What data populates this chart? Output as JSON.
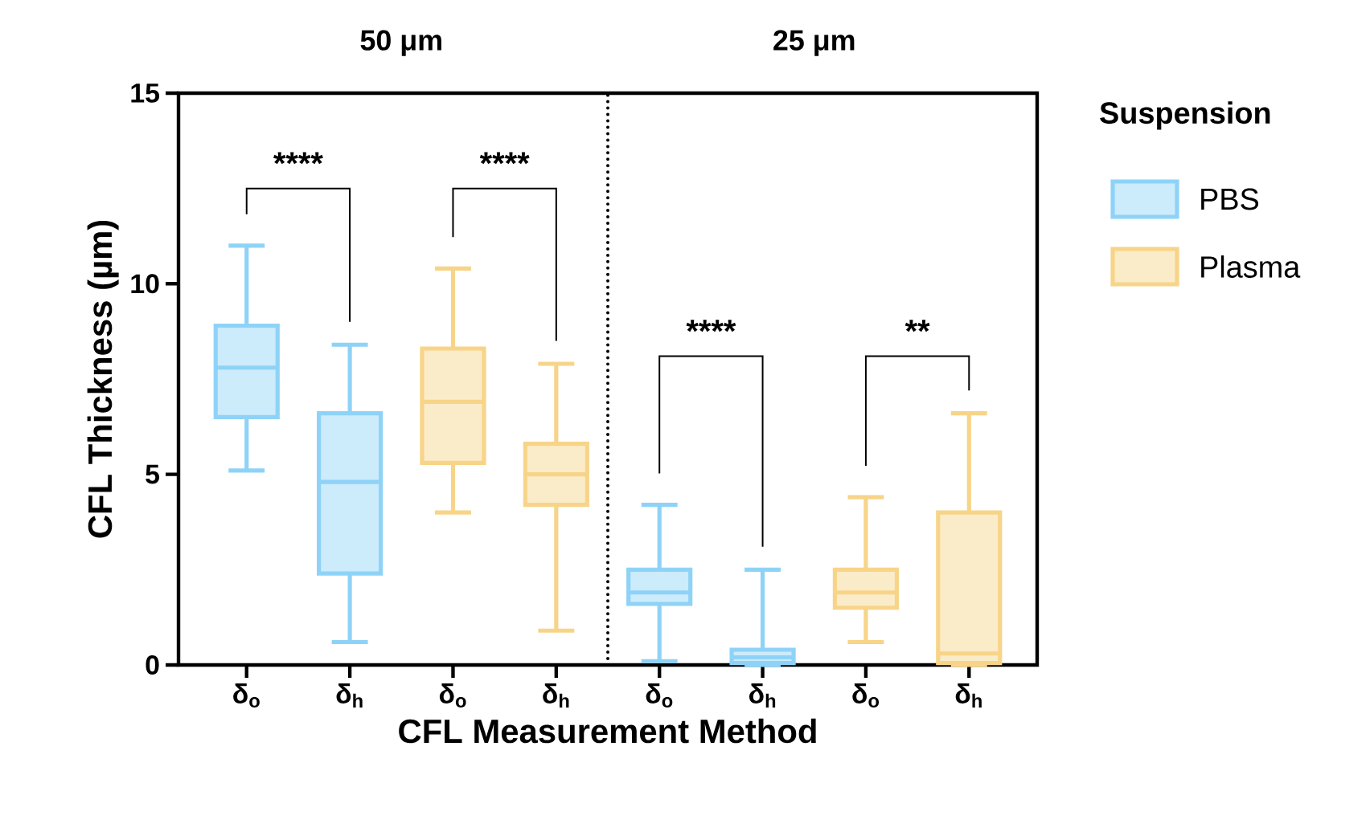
{
  "chart_data": {
    "type": "box",
    "ylabel": "CFL Thickness (µm)",
    "xlabel": "CFL Measurement Method",
    "categories": [
      "δ$_{o}$",
      "δ$_{h}$",
      "δ$_{o}$",
      "δ$_{h}$",
      "δ$_{o}$",
      "δ$_{h}$",
      "δ$_{o}$",
      "δ$_{h}$"
    ],
    "ylim": [
      0,
      15
    ],
    "yticks": [
      0,
      5,
      10,
      15
    ],
    "grid": false,
    "legend": "right",
    "legend_title": "Suspension",
    "annotations": [
      "50 μm",
      "25 μm",
      "****",
      "****",
      "****",
      "**"
    ],
    "series": [
      {
        "name": "PBS",
        "color": "#8ed3f7",
        "boxes": [
          {
            "low": 5.1,
            "q1": 6.5,
            "median": 7.8,
            "q3": 8.9,
            "high": 11.0
          },
          {
            "low": 0.6,
            "q1": 2.4,
            "median": 4.8,
            "q3": 6.6,
            "high": 8.4
          },
          null,
          null,
          {
            "low": 0.1,
            "q1": 1.6,
            "median": 1.9,
            "q3": 2.5,
            "high": 4.2
          },
          {
            "low": 0,
            "q1": 0.05,
            "median": 0.2,
            "q3": 0.4,
            "high": 2.5
          },
          null,
          null
        ]
      },
      {
        "name": "Plasma",
        "color": "#f7d488",
        "boxes": [
          null,
          null,
          {
            "low": 4.0,
            "q1": 5.3,
            "median": 6.9,
            "q3": 8.3,
            "high": 10.4
          },
          {
            "low": 0.9,
            "q1": 4.2,
            "median": 5.0,
            "q3": 5.8,
            "high": 7.9
          },
          null,
          null,
          {
            "low": 0.6,
            "q1": 1.5,
            "median": 1.9,
            "q3": 2.5,
            "high": 4.4
          },
          {
            "low": 0,
            "q1": 0.05,
            "median": 0.3,
            "q3": 4.0,
            "high": 6.6
          }
        ]
      }
    ]
  }
}
